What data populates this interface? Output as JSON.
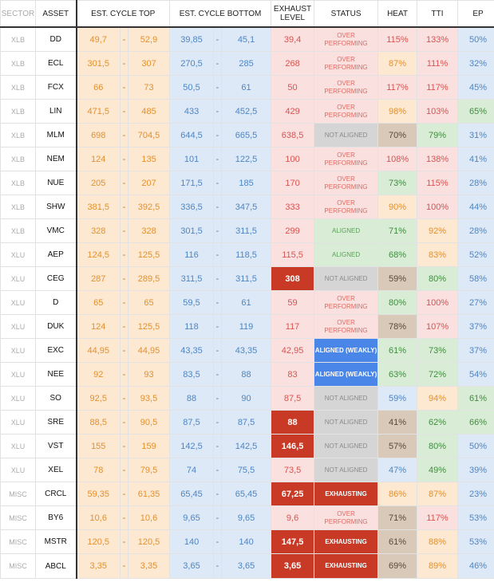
{
  "headers": {
    "sector": "SECTOR",
    "asset": "ASSET",
    "cycle_top": "EST. CYCLE TOP",
    "cycle_bottom": "EST. CYCLE BOTTOM",
    "exhaust": "EXHAUST LEVEL",
    "status": "STATUS",
    "heat": "HEAT",
    "tti": "TTI",
    "ep": "EP"
  },
  "colors": {
    "over_performing": "#fbe0e0",
    "not_aligned": "#d5d5d5",
    "aligned": "#d9ecd5",
    "aligned_weakly": "#4a86e8",
    "exhausting": "#c83a25"
  },
  "rows": [
    {
      "sector": "XLB",
      "asset": "DD",
      "top_lo": "49,7",
      "top_hi": "52,9",
      "bot_lo": "39,85",
      "bot_hi": "45,1",
      "exhaust": "39,4",
      "exhaust_hot": false,
      "status": "OVER PERFORMING",
      "status_kind": "over",
      "heat": "115%",
      "heat_c": "red",
      "tti": "133%",
      "tti_c": "red",
      "ep": "50%",
      "ep_c": "blu"
    },
    {
      "sector": "XLB",
      "asset": "ECL",
      "top_lo": "301,5",
      "top_hi": "307",
      "bot_lo": "270,5",
      "bot_hi": "285",
      "exhaust": "268",
      "exhaust_hot": false,
      "status": "OVER PERFORMING",
      "status_kind": "over",
      "heat": "87%",
      "heat_c": "org",
      "tti": "111%",
      "tti_c": "red",
      "ep": "32%",
      "ep_c": "blu"
    },
    {
      "sector": "XLB",
      "asset": "FCX",
      "top_lo": "66",
      "top_hi": "73",
      "bot_lo": "50,5",
      "bot_hi": "61",
      "exhaust": "50",
      "exhaust_hot": false,
      "status": "OVER PERFORMING",
      "status_kind": "over",
      "heat": "117%",
      "heat_c": "red",
      "tti": "117%",
      "tti_c": "red",
      "ep": "45%",
      "ep_c": "blu"
    },
    {
      "sector": "XLB",
      "asset": "LIN",
      "top_lo": "471,5",
      "top_hi": "485",
      "bot_lo": "433",
      "bot_hi": "452,5",
      "exhaust": "429",
      "exhaust_hot": false,
      "status": "OVER PERFORMING",
      "status_kind": "over",
      "heat": "98%",
      "heat_c": "org",
      "tti": "103%",
      "tti_c": "red",
      "ep": "65%",
      "ep_c": "grn"
    },
    {
      "sector": "XLB",
      "asset": "MLM",
      "top_lo": "698",
      "top_hi": "704,5",
      "bot_lo": "644,5",
      "bot_hi": "665,5",
      "exhaust": "638,5",
      "exhaust_hot": false,
      "status": "NOT ALIGNED",
      "status_kind": "not",
      "heat": "70%",
      "heat_c": "brn",
      "tti": "79%",
      "tti_c": "grn",
      "ep": "31%",
      "ep_c": "blu"
    },
    {
      "sector": "XLB",
      "asset": "NEM",
      "top_lo": "124",
      "top_hi": "135",
      "bot_lo": "101",
      "bot_hi": "122,5",
      "exhaust": "100",
      "exhaust_hot": false,
      "status": "OVER PERFORMING",
      "status_kind": "over",
      "heat": "108%",
      "heat_c": "red",
      "tti": "138%",
      "tti_c": "red",
      "ep": "41%",
      "ep_c": "blu"
    },
    {
      "sector": "XLB",
      "asset": "NUE",
      "top_lo": "205",
      "top_hi": "207",
      "bot_lo": "171,5",
      "bot_hi": "185",
      "exhaust": "170",
      "exhaust_hot": false,
      "status": "OVER PERFORMING",
      "status_kind": "over",
      "heat": "73%",
      "heat_c": "grn",
      "tti": "115%",
      "tti_c": "red",
      "ep": "28%",
      "ep_c": "blu"
    },
    {
      "sector": "XLB",
      "asset": "SHW",
      "top_lo": "381,5",
      "top_hi": "392,5",
      "bot_lo": "336,5",
      "bot_hi": "347,5",
      "exhaust": "333",
      "exhaust_hot": false,
      "status": "OVER PERFORMING",
      "status_kind": "over",
      "heat": "90%",
      "heat_c": "org",
      "tti": "100%",
      "tti_c": "red",
      "ep": "44%",
      "ep_c": "blu"
    },
    {
      "sector": "XLB",
      "asset": "VMC",
      "top_lo": "328",
      "top_hi": "328",
      "bot_lo": "301,5",
      "bot_hi": "311,5",
      "exhaust": "299",
      "exhaust_hot": false,
      "status": "ALIGNED",
      "status_kind": "al",
      "heat": "71%",
      "heat_c": "grn",
      "tti": "92%",
      "tti_c": "org",
      "ep": "28%",
      "ep_c": "blu"
    },
    {
      "sector": "XLU",
      "asset": "AEP",
      "top_lo": "124,5",
      "top_hi": "125,5",
      "bot_lo": "116",
      "bot_hi": "118,5",
      "exhaust": "115,5",
      "exhaust_hot": false,
      "status": "ALIGNED",
      "status_kind": "al",
      "heat": "68%",
      "heat_c": "grn",
      "tti": "83%",
      "tti_c": "org",
      "ep": "52%",
      "ep_c": "blu"
    },
    {
      "sector": "XLU",
      "asset": "CEG",
      "top_lo": "287",
      "top_hi": "289,5",
      "bot_lo": "311,5",
      "bot_hi": "311,5",
      "exhaust": "308",
      "exhaust_hot": true,
      "status": "NOT ALIGNED",
      "status_kind": "not",
      "heat": "59%",
      "heat_c": "brn",
      "tti": "80%",
      "tti_c": "grn",
      "ep": "58%",
      "ep_c": "blu"
    },
    {
      "sector": "XLU",
      "asset": "D",
      "top_lo": "65",
      "top_hi": "65",
      "bot_lo": "59,5",
      "bot_hi": "61",
      "exhaust": "59",
      "exhaust_hot": false,
      "status": "OVER PERFORMING",
      "status_kind": "over",
      "heat": "80%",
      "heat_c": "grn",
      "tti": "100%",
      "tti_c": "red",
      "ep": "27%",
      "ep_c": "blu"
    },
    {
      "sector": "XLU",
      "asset": "DUK",
      "top_lo": "124",
      "top_hi": "125,5",
      "bot_lo": "118",
      "bot_hi": "119",
      "exhaust": "117",
      "exhaust_hot": false,
      "status": "OVER PERFORMING",
      "status_kind": "over",
      "heat": "78%",
      "heat_c": "brn",
      "tti": "107%",
      "tti_c": "red",
      "ep": "37%",
      "ep_c": "blu"
    },
    {
      "sector": "XLU",
      "asset": "EXC",
      "top_lo": "44,95",
      "top_hi": "44,95",
      "bot_lo": "43,35",
      "bot_hi": "43,35",
      "exhaust": "42,95",
      "exhaust_hot": false,
      "status": "ALIGNED (WEAKLY)",
      "status_kind": "weak",
      "heat": "61%",
      "heat_c": "grn",
      "tti": "73%",
      "tti_c": "grn",
      "ep": "37%",
      "ep_c": "blu"
    },
    {
      "sector": "XLU",
      "asset": "NEE",
      "top_lo": "92",
      "top_hi": "93",
      "bot_lo": "83,5",
      "bot_hi": "88",
      "exhaust": "83",
      "exhaust_hot": false,
      "status": "ALIGNED (WEAKLY)",
      "status_kind": "weak",
      "heat": "63%",
      "heat_c": "grn",
      "tti": "72%",
      "tti_c": "grn",
      "ep": "54%",
      "ep_c": "blu"
    },
    {
      "sector": "XLU",
      "asset": "SO",
      "top_lo": "92,5",
      "top_hi": "93,5",
      "bot_lo": "88",
      "bot_hi": "90",
      "exhaust": "87,5",
      "exhaust_hot": false,
      "status": "NOT ALIGNED",
      "status_kind": "not",
      "heat": "59%",
      "heat_c": "blu",
      "tti": "94%",
      "tti_c": "org",
      "ep": "61%",
      "ep_c": "grn"
    },
    {
      "sector": "XLU",
      "asset": "SRE",
      "top_lo": "88,5",
      "top_hi": "90,5",
      "bot_lo": "87,5",
      "bot_hi": "87,5",
      "exhaust": "88",
      "exhaust_hot": true,
      "status": "NOT ALIGNED",
      "status_kind": "not",
      "heat": "41%",
      "heat_c": "brn",
      "tti": "62%",
      "tti_c": "grn",
      "ep": "66%",
      "ep_c": "grn"
    },
    {
      "sector": "XLU",
      "asset": "VST",
      "top_lo": "155",
      "top_hi": "159",
      "bot_lo": "142,5",
      "bot_hi": "142,5",
      "exhaust": "146,5",
      "exhaust_hot": true,
      "status": "NOT ALIGNED",
      "status_kind": "not",
      "heat": "57%",
      "heat_c": "brn",
      "tti": "80%",
      "tti_c": "grn",
      "ep": "50%",
      "ep_c": "blu"
    },
    {
      "sector": "XLU",
      "asset": "XEL",
      "top_lo": "78",
      "top_hi": "79,5",
      "bot_lo": "74",
      "bot_hi": "75,5",
      "exhaust": "73,5",
      "exhaust_hot": false,
      "status": "NOT ALIGNED",
      "status_kind": "not",
      "heat": "47%",
      "heat_c": "blu",
      "tti": "49%",
      "tti_c": "grn",
      "ep": "39%",
      "ep_c": "blu"
    },
    {
      "sector": "MISC",
      "asset": "CRCL",
      "top_lo": "59,35",
      "top_hi": "61,35",
      "bot_lo": "65,45",
      "bot_hi": "65,45",
      "exhaust": "67,25",
      "exhaust_hot": true,
      "status": "EXHAUSTING",
      "status_kind": "exh",
      "heat": "86%",
      "heat_c": "org",
      "tti": "87%",
      "tti_c": "org",
      "ep": "23%",
      "ep_c": "blu"
    },
    {
      "sector": "MISC",
      "asset": "BY6",
      "top_lo": "10,6",
      "top_hi": "10,6",
      "bot_lo": "9,65",
      "bot_hi": "9,65",
      "exhaust": "9,6",
      "exhaust_hot": false,
      "status": "OVER PERFORMING",
      "status_kind": "over",
      "heat": "71%",
      "heat_c": "brn",
      "tti": "117%",
      "tti_c": "red",
      "ep": "53%",
      "ep_c": "blu"
    },
    {
      "sector": "MISC",
      "asset": "MSTR",
      "top_lo": "120,5",
      "top_hi": "120,5",
      "bot_lo": "140",
      "bot_hi": "140",
      "exhaust": "147,5",
      "exhaust_hot": true,
      "status": "EXHAUSTING",
      "status_kind": "exh",
      "heat": "61%",
      "heat_c": "brn",
      "tti": "88%",
      "tti_c": "org",
      "ep": "53%",
      "ep_c": "blu"
    },
    {
      "sector": "MISC",
      "asset": "ABCL",
      "top_lo": "3,35",
      "top_hi": "3,35",
      "bot_lo": "3,65",
      "bot_hi": "3,65",
      "exhaust": "3,65",
      "exhaust_hot": true,
      "status": "EXHAUSTING",
      "status_kind": "exh",
      "heat": "69%",
      "heat_c": "brn",
      "tti": "89%",
      "tti_c": "org",
      "ep": "46%",
      "ep_c": "blu"
    }
  ]
}
